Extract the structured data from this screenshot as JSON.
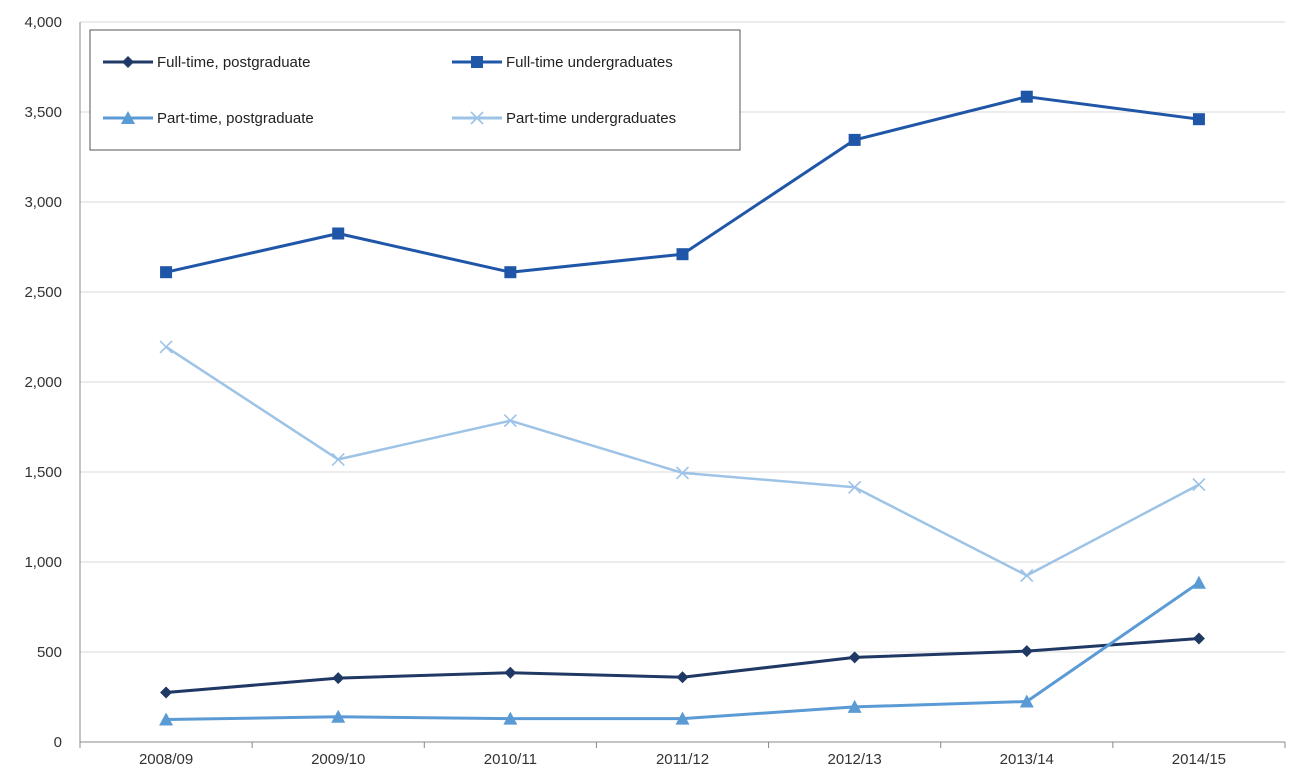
{
  "chart_data": {
    "type": "line",
    "title": "",
    "xlabel": "",
    "ylabel": "",
    "categories": [
      "2008/09",
      "2009/10",
      "2010/11",
      "2011/12",
      "2012/13",
      "2013/14",
      "2014/15"
    ],
    "ylim": [
      0,
      4000
    ],
    "yticks": [
      0,
      500,
      1000,
      1500,
      2000,
      2500,
      3000,
      3500,
      4000
    ],
    "ytick_labels": [
      "0",
      "500",
      "1,000",
      "1,500",
      "2,000",
      "2,500",
      "3,000",
      "3,500",
      "4,000"
    ],
    "grid": true,
    "legend_position": "top-left",
    "series": [
      {
        "name": "Full-time, postgraduate",
        "values": [
          275,
          355,
          385,
          360,
          470,
          505,
          575
        ],
        "color": "#1f3864",
        "marker": "diamond"
      },
      {
        "name": "Full-time undergraduates",
        "values": [
          2610,
          2825,
          2610,
          2710,
          3345,
          3585,
          3460
        ],
        "color": "#1f56a8",
        "marker": "square"
      },
      {
        "name": "Part-time, postgraduate",
        "values": [
          125,
          140,
          130,
          130,
          195,
          225,
          885
        ],
        "color": "#5b9bd5",
        "marker": "triangle"
      },
      {
        "name": "Part-time undergraduates",
        "values": [
          2195,
          1570,
          1785,
          1495,
          1415,
          925,
          1430
        ],
        "color": "#9dc3e6",
        "marker": "x"
      }
    ]
  }
}
